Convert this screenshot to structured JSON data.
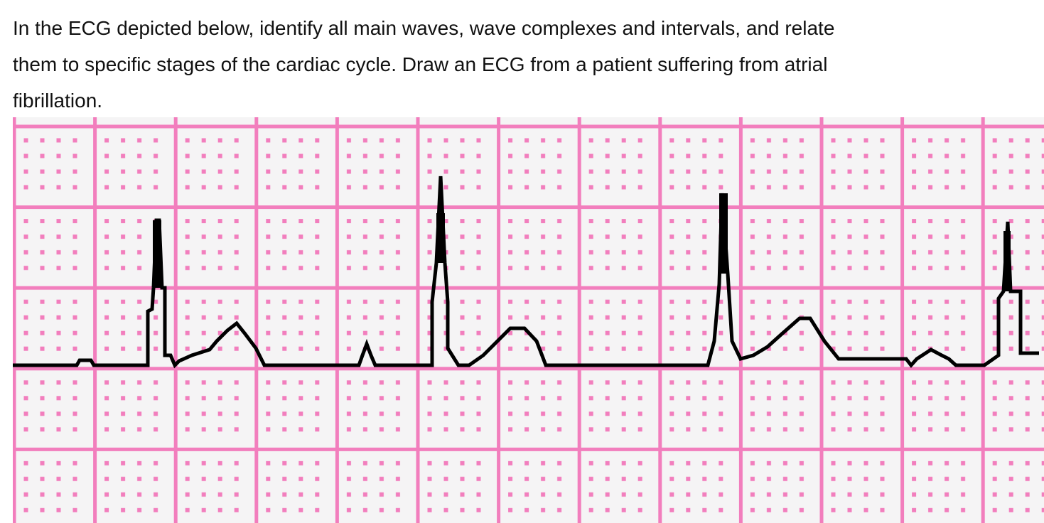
{
  "question": {
    "lines": [
      "In the ECG depicted below, identify all main waves, wave complexes and intervals, and relate",
      "them to specific stages of the cardiac cycle. Draw an ECG from a patient suffering from atrial",
      "fibrillation."
    ]
  }
}
